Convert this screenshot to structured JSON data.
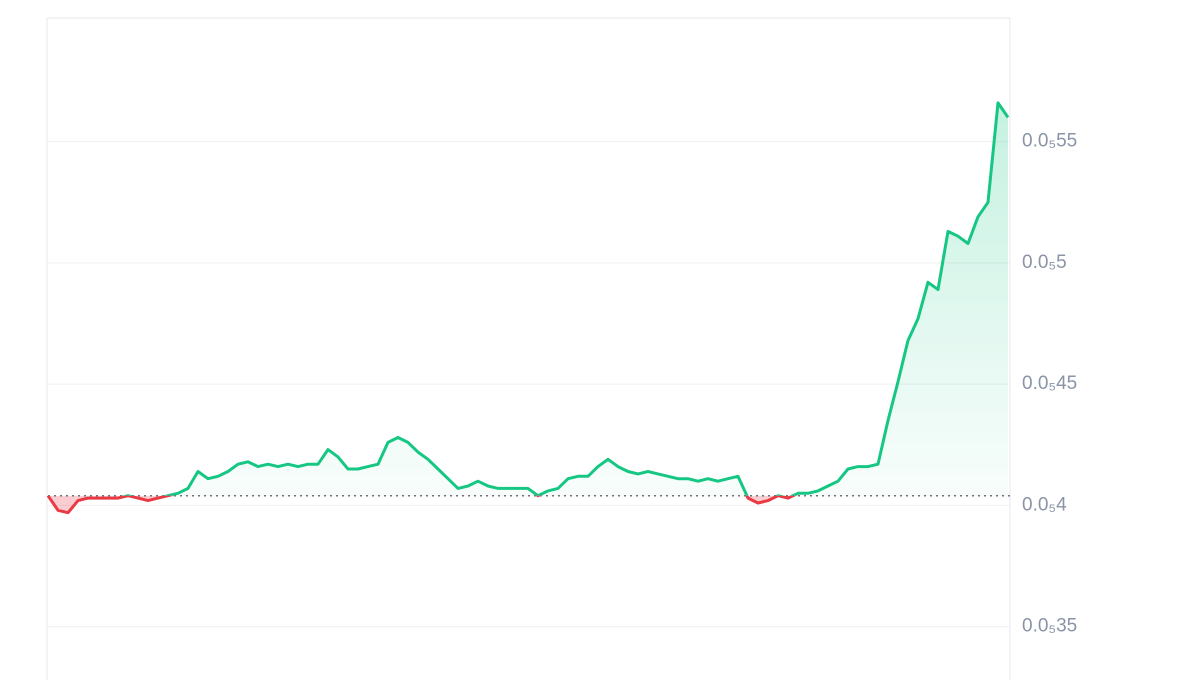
{
  "chart_data": {
    "type": "line",
    "values": [
      4.04e-06,
      3.98e-06,
      3.97e-06,
      4.02e-06,
      4.03e-06,
      4.03e-06,
      4.03e-06,
      4.03e-06,
      4.04e-06,
      4.03e-06,
      4.02e-06,
      4.03e-06,
      4.04e-06,
      4.05e-06,
      4.07e-06,
      4.14e-06,
      4.11e-06,
      4.12e-06,
      4.14e-06,
      4.17e-06,
      4.18e-06,
      4.16e-06,
      4.17e-06,
      4.16e-06,
      4.17e-06,
      4.16e-06,
      4.17e-06,
      4.17e-06,
      4.23e-06,
      4.2e-06,
      4.15e-06,
      4.15e-06,
      4.16e-06,
      4.17e-06,
      4.26e-06,
      4.28e-06,
      4.26e-06,
      4.22e-06,
      4.19e-06,
      4.15e-06,
      4.11e-06,
      4.07e-06,
      4.08e-06,
      4.1e-06,
      4.08e-06,
      4.07e-06,
      4.07e-06,
      4.07e-06,
      4.07e-06,
      4.04e-06,
      4.06e-06,
      4.07e-06,
      4.11e-06,
      4.12e-06,
      4.12e-06,
      4.16e-06,
      4.19e-06,
      4.16e-06,
      4.14e-06,
      4.13e-06,
      4.14e-06,
      4.13e-06,
      4.12e-06,
      4.11e-06,
      4.11e-06,
      4.1e-06,
      4.11e-06,
      4.1e-06,
      4.11e-06,
      4.12e-06,
      4.03e-06,
      4.01e-06,
      4.02e-06,
      4.04e-06,
      4.03e-06,
      4.05e-06,
      4.05e-06,
      4.06e-06,
      4.08e-06,
      4.1e-06,
      4.15e-06,
      4.16e-06,
      4.16e-06,
      4.17e-06,
      4.35e-06,
      4.51e-06,
      4.68e-06,
      4.77e-06,
      4.92e-06,
      4.89e-06,
      5.13e-06,
      5.11e-06,
      5.08e-06,
      5.19e-06,
      5.25e-06,
      5.66e-06,
      5.6e-06
    ],
    "baseline": 4.04e-06,
    "up_color": "#16c784",
    "down_color": "#ea3943",
    "ylim": [
      3.28e-06,
      6.01e-06
    ],
    "yticks": [
      {
        "value": 3.5e-06,
        "label": "0.0₅35"
      },
      {
        "value": 4e-06,
        "label": "0.0₅4"
      },
      {
        "value": 4.5e-06,
        "label": "0.0₅45"
      },
      {
        "value": 5e-06,
        "label": "0.0₅5"
      },
      {
        "value": 5.5e-06,
        "label": "0.0₅55"
      }
    ],
    "grid": true
  }
}
